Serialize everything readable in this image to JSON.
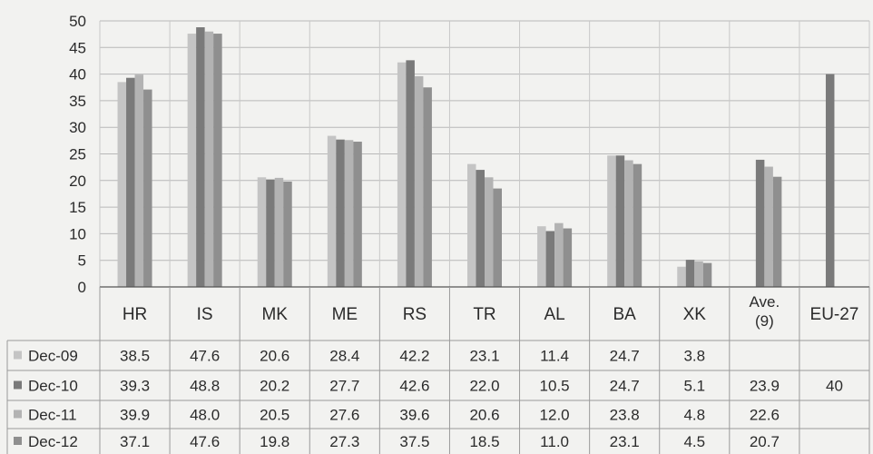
{
  "chart_data": {
    "type": "bar",
    "categories": [
      "HR",
      "IS",
      "MK",
      "ME",
      "RS",
      "TR",
      "AL",
      "BA",
      "XK",
      "Ave.\n(9)",
      "EU-27"
    ],
    "series": [
      {
        "name": "Dec-09",
        "color": "#c4c4c4",
        "values": [
          38.5,
          47.6,
          20.6,
          28.4,
          42.2,
          23.1,
          11.4,
          24.7,
          3.8,
          null,
          null
        ]
      },
      {
        "name": "Dec-10",
        "color": "#7a7a7a",
        "values": [
          39.3,
          48.8,
          20.2,
          27.7,
          42.6,
          22.0,
          10.5,
          24.7,
          5.1,
          23.9,
          40
        ]
      },
      {
        "name": "Dec-11",
        "color": "#b3b3b3",
        "values": [
          39.9,
          48.0,
          20.5,
          27.6,
          39.6,
          20.6,
          12.0,
          23.8,
          4.8,
          22.6,
          null
        ]
      },
      {
        "name": "Dec-12",
        "color": "#8f8f8f",
        "values": [
          37.1,
          47.6,
          19.8,
          27.3,
          37.5,
          18.5,
          11.0,
          23.1,
          4.5,
          20.7,
          null
        ]
      }
    ],
    "table_display": {
      "Dec-09": [
        "38.5",
        "47.6",
        "20.6",
        "28.4",
        "42.2",
        "23.1",
        "11.4",
        "24.7",
        "3.8",
        "",
        ""
      ],
      "Dec-10": [
        "39.3",
        "48.8",
        "20.2",
        "27.7",
        "42.6",
        "22.0",
        "10.5",
        "24.7",
        "5.1",
        "23.9",
        "40"
      ],
      "Dec-11": [
        "39.9",
        "48.0",
        "20.5",
        "27.6",
        "39.6",
        "20.6",
        "12.0",
        "23.8",
        "4.8",
        "22.6",
        ""
      ],
      "Dec-12": [
        "37.1",
        "47.6",
        "19.8",
        "27.3",
        "37.5",
        "18.5",
        "11.0",
        "23.1",
        "4.5",
        "20.7",
        ""
      ]
    },
    "yticks": [
      "50",
      "45",
      "40",
      "35",
      "30",
      "25",
      "20",
      "15",
      "10",
      "5",
      "0"
    ],
    "ylim": [
      0,
      50
    ],
    "grid": true,
    "legend": "data-table-left",
    "title": "",
    "xlabel": "",
    "ylabel": ""
  }
}
